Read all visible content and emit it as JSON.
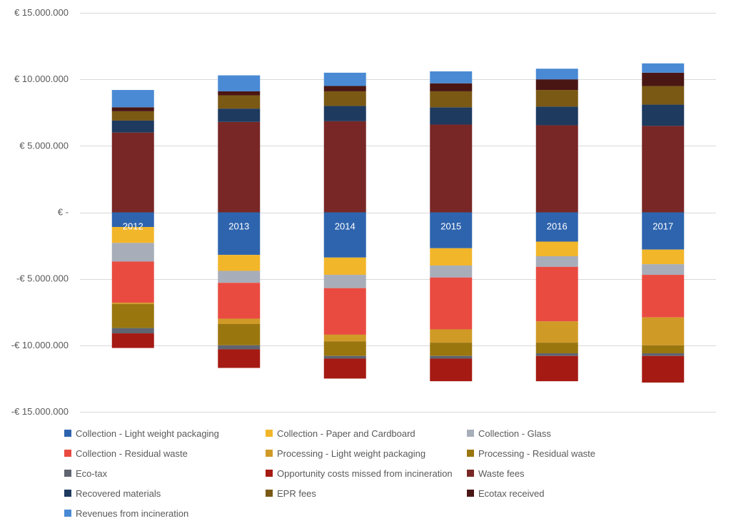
{
  "chart_data": {
    "type": "bar",
    "stacked": true,
    "categories": [
      "2012",
      "2013",
      "2014",
      "2015",
      "2016",
      "2017"
    ],
    "ylim": [
      -15000000,
      15000000
    ],
    "yticks": [
      15000000,
      10000000,
      5000000,
      0,
      -5000000,
      -10000000,
      -15000000
    ],
    "ytick_labels": [
      "€ 15.000.000",
      "€ 10.000.000",
      "€ 5.000.000",
      "€ -",
      "-€ 5.000.000",
      "-€ 10.000.000",
      "-€ 15.000.000"
    ],
    "grid": true,
    "legend_position": "bottom",
    "series": [
      {
        "name": "Collection - Light weight packaging",
        "color": "#2E64AE",
        "values": [
          -1100000,
          -3200000,
          -3400000,
          -2700000,
          -2200000,
          -2800000
        ]
      },
      {
        "name": "Collection - Paper and Cardboard",
        "color": "#F2B62B",
        "values": [
          -1200000,
          -1200000,
          -1300000,
          -1300000,
          -1100000,
          -1100000
        ]
      },
      {
        "name": "Collection - Glass",
        "color": "#A7ADB9",
        "values": [
          -1400000,
          -900000,
          -1000000,
          -900000,
          -800000,
          -800000
        ]
      },
      {
        "name": "Collection - Residual waste",
        "color": "#E94B41",
        "values": [
          -3100000,
          -2700000,
          -3500000,
          -3900000,
          -4100000,
          -3200000
        ]
      },
      {
        "name": "Processing - Light weight packaging",
        "color": "#D09A27",
        "values": [
          -100000,
          -400000,
          -500000,
          -1000000,
          -1600000,
          -2100000
        ]
      },
      {
        "name": "Processing - Residual waste",
        "color": "#9A760F",
        "values": [
          -1800000,
          -1600000,
          -1100000,
          -1000000,
          -800000,
          -600000
        ]
      },
      {
        "name": "Eco-tax",
        "color": "#5F6470",
        "values": [
          -400000,
          -300000,
          -200000,
          -200000,
          -200000,
          -200000
        ]
      },
      {
        "name": "Opportunity costs missed from incineration",
        "color": "#A51A13",
        "values": [
          -1100000,
          -1400000,
          -1500000,
          -1700000,
          -1900000,
          -2000000
        ]
      },
      {
        "name": "Waste fees",
        "color": "#782726",
        "values": [
          6000000,
          6800000,
          6850000,
          6600000,
          6550000,
          6500000
        ]
      },
      {
        "name": "Recovered materials",
        "color": "#1E3A5F",
        "values": [
          900000,
          1000000,
          1150000,
          1300000,
          1400000,
          1600000
        ]
      },
      {
        "name": "EPR fees",
        "color": "#7A5915",
        "values": [
          700000,
          1000000,
          1100000,
          1200000,
          1250000,
          1400000
        ]
      },
      {
        "name": "Ecotax received",
        "color": "#4A1614",
        "values": [
          300000,
          300000,
          400000,
          600000,
          800000,
          1000000
        ]
      },
      {
        "name": "Revenues from incineration",
        "color": "#4A8AD4",
        "values": [
          1300000,
          1200000,
          1000000,
          900000,
          800000,
          700000
        ]
      }
    ]
  }
}
